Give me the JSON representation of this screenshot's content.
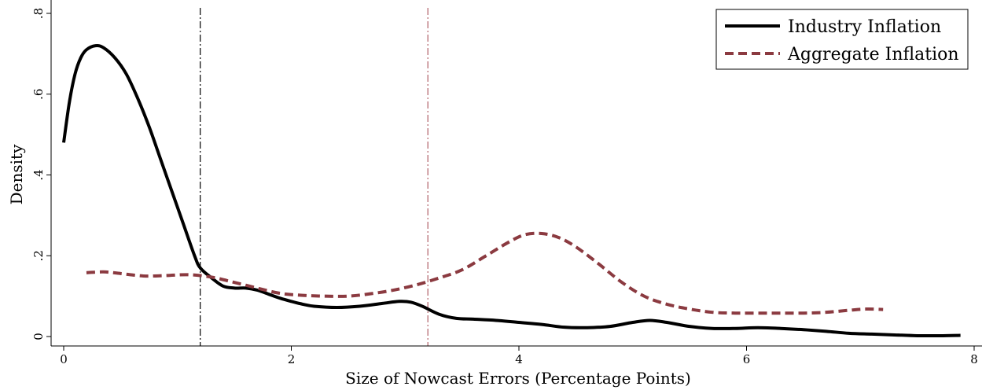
{
  "chart_data": {
    "type": "line",
    "title": "",
    "xlabel": "Size of Nowcast Errors (Percentage Points)",
    "ylabel": "Density",
    "xlim": [
      0,
      8
    ],
    "ylim": [
      0,
      0.8
    ],
    "x_ticks": [
      {
        "value": 0,
        "label": "0"
      },
      {
        "value": 2,
        "label": "2"
      },
      {
        "value": 4,
        "label": "4"
      },
      {
        "value": 6,
        "label": "6"
      },
      {
        "value": 8,
        "label": "8"
      }
    ],
    "y_ticks": [
      {
        "value": 0,
        "label": "0"
      },
      {
        "value": 0.2,
        "label": ".2"
      },
      {
        "value": 0.4,
        "label": ".4"
      },
      {
        "value": 0.6,
        "label": ".6"
      },
      {
        "value": 0.8,
        "label": ".8"
      }
    ],
    "grid": false,
    "legend": {
      "position": "top-right"
    },
    "series": [
      {
        "name": "Industry Inflation",
        "color": "#000000",
        "style": "solid",
        "points": [
          [
            0.0,
            0.48
          ],
          [
            0.05,
            0.58
          ],
          [
            0.1,
            0.65
          ],
          [
            0.15,
            0.69
          ],
          [
            0.2,
            0.71
          ],
          [
            0.28,
            0.72
          ],
          [
            0.35,
            0.715
          ],
          [
            0.45,
            0.69
          ],
          [
            0.55,
            0.65
          ],
          [
            0.65,
            0.59
          ],
          [
            0.75,
            0.52
          ],
          [
            0.85,
            0.44
          ],
          [
            0.95,
            0.36
          ],
          [
            1.05,
            0.28
          ],
          [
            1.15,
            0.2
          ],
          [
            1.2,
            0.17
          ],
          [
            1.3,
            0.145
          ],
          [
            1.4,
            0.125
          ],
          [
            1.5,
            0.12
          ],
          [
            1.6,
            0.12
          ],
          [
            1.7,
            0.115
          ],
          [
            1.8,
            0.105
          ],
          [
            1.9,
            0.095
          ],
          [
            2.0,
            0.087
          ],
          [
            2.1,
            0.08
          ],
          [
            2.2,
            0.075
          ],
          [
            2.4,
            0.072
          ],
          [
            2.6,
            0.075
          ],
          [
            2.8,
            0.082
          ],
          [
            2.95,
            0.087
          ],
          [
            3.05,
            0.085
          ],
          [
            3.15,
            0.075
          ],
          [
            3.3,
            0.055
          ],
          [
            3.45,
            0.045
          ],
          [
            3.6,
            0.043
          ],
          [
            3.8,
            0.04
          ],
          [
            4.0,
            0.035
          ],
          [
            4.2,
            0.03
          ],
          [
            4.4,
            0.023
          ],
          [
            4.6,
            0.022
          ],
          [
            4.8,
            0.025
          ],
          [
            5.0,
            0.035
          ],
          [
            5.15,
            0.04
          ],
          [
            5.3,
            0.035
          ],
          [
            5.5,
            0.025
          ],
          [
            5.7,
            0.02
          ],
          [
            5.9,
            0.02
          ],
          [
            6.1,
            0.022
          ],
          [
            6.3,
            0.02
          ],
          [
            6.5,
            0.017
          ],
          [
            6.7,
            0.013
          ],
          [
            6.9,
            0.008
          ],
          [
            7.1,
            0.006
          ],
          [
            7.3,
            0.004
          ],
          [
            7.5,
            0.002
          ],
          [
            7.7,
            0.002
          ],
          [
            7.88,
            0.003
          ]
        ]
      },
      {
        "name": "Aggregate Inflation",
        "color": "#8b3a40",
        "style": "dashed",
        "points": [
          [
            0.2,
            0.158
          ],
          [
            0.35,
            0.16
          ],
          [
            0.5,
            0.156
          ],
          [
            0.7,
            0.15
          ],
          [
            0.9,
            0.151
          ],
          [
            1.1,
            0.153
          ],
          [
            1.3,
            0.147
          ],
          [
            1.5,
            0.134
          ],
          [
            1.7,
            0.12
          ],
          [
            1.9,
            0.107
          ],
          [
            2.1,
            0.102
          ],
          [
            2.3,
            0.1
          ],
          [
            2.5,
            0.1
          ],
          [
            2.7,
            0.106
          ],
          [
            2.9,
            0.115
          ],
          [
            3.1,
            0.128
          ],
          [
            3.3,
            0.145
          ],
          [
            3.5,
            0.165
          ],
          [
            3.7,
            0.198
          ],
          [
            3.9,
            0.232
          ],
          [
            4.05,
            0.252
          ],
          [
            4.2,
            0.255
          ],
          [
            4.35,
            0.245
          ],
          [
            4.5,
            0.222
          ],
          [
            4.7,
            0.18
          ],
          [
            4.9,
            0.135
          ],
          [
            5.1,
            0.1
          ],
          [
            5.3,
            0.08
          ],
          [
            5.5,
            0.068
          ],
          [
            5.7,
            0.06
          ],
          [
            5.9,
            0.058
          ],
          [
            6.1,
            0.058
          ],
          [
            6.3,
            0.058
          ],
          [
            6.5,
            0.058
          ],
          [
            6.7,
            0.06
          ],
          [
            6.9,
            0.065
          ],
          [
            7.05,
            0.068
          ],
          [
            7.2,
            0.067
          ]
        ]
      }
    ],
    "reference_lines": [
      {
        "axis": "x",
        "value": 1.2,
        "color": "#000000",
        "style": "dash-dot"
      },
      {
        "axis": "x",
        "value": 3.2,
        "color": "#b06068",
        "style": "dash-dot"
      }
    ]
  }
}
